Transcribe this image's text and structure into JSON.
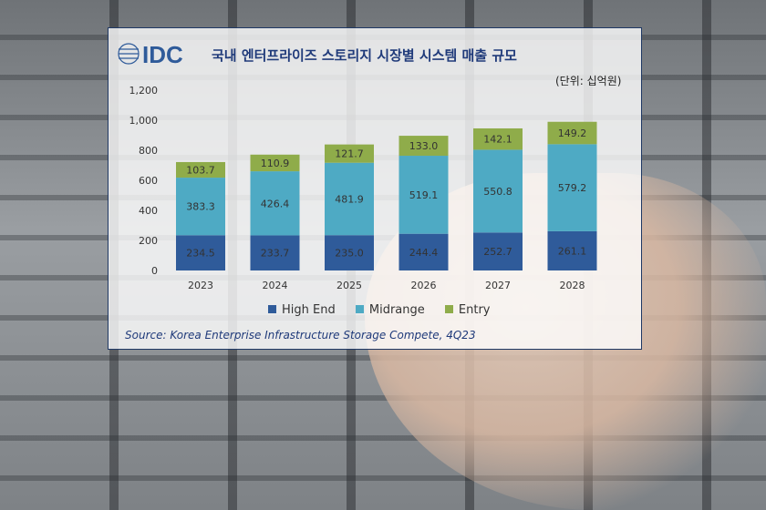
{
  "header": {
    "logo_text": "IDC",
    "title": "국내 엔터프라이즈 스토리지 시장별 시스템 매출 규모",
    "unit": "(단위: 십억원)"
  },
  "source": "Source: Korea Enterprise Infrastructure Storage Compete, 4Q23",
  "colors": {
    "high_end": "#2f5b9a",
    "midrange": "#4eaac4",
    "entry": "#8fac4a",
    "title": "#1f3a7a"
  },
  "chart_data": {
    "type": "bar",
    "stacked": true,
    "categories": [
      "2023",
      "2024",
      "2025",
      "2026",
      "2027",
      "2028"
    ],
    "series": [
      {
        "name": "High End",
        "values": [
          234.5,
          233.7,
          235.0,
          244.4,
          252.7,
          261.1
        ]
      },
      {
        "name": "Midrange",
        "values": [
          383.3,
          426.4,
          481.9,
          519.1,
          550.8,
          579.2
        ]
      },
      {
        "name": "Entry",
        "values": [
          103.7,
          110.9,
          121.7,
          133.0,
          142.1,
          149.2
        ]
      }
    ],
    "y_ticks": [
      "0",
      "200",
      "400",
      "600",
      "800",
      "1,000",
      "1,200"
    ],
    "ylim": [
      0,
      1200
    ],
    "grid": false,
    "legend_position": "bottom"
  }
}
